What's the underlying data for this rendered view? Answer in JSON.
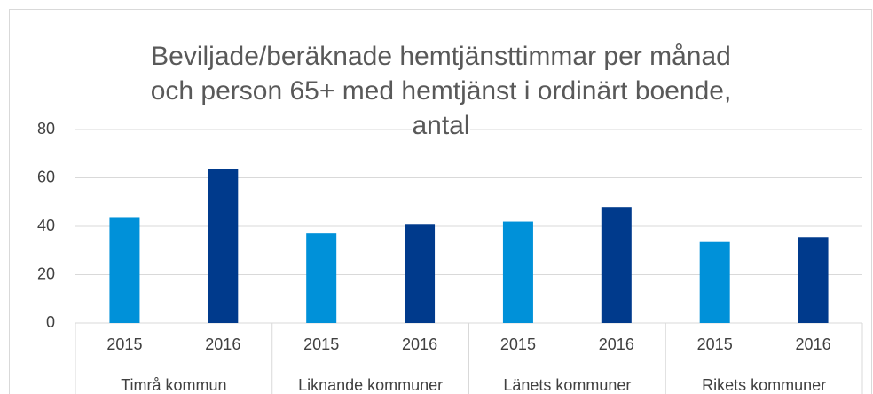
{
  "chart_data": {
    "type": "bar",
    "title": "Beviljade/beräknade hemtjänsttimmar per månad och person 65+ med hemtjänst i ordinärt boende, antal",
    "categories": [
      "2015",
      "2016",
      "2015",
      "2016",
      "2015",
      "2016",
      "2015",
      "2016"
    ],
    "groups": [
      "Timrå kommun",
      "Liknande kommuner",
      "Länets kommuner",
      "Rikets kommuner"
    ],
    "values": [
      43.5,
      63.5,
      37,
      41,
      42,
      48,
      33.5,
      35.5
    ],
    "colors": [
      "#0091d9",
      "#003a8c",
      "#0091d9",
      "#003a8c",
      "#0091d9",
      "#003a8c",
      "#0091d9",
      "#003a8c"
    ],
    "ylim": [
      0,
      80
    ],
    "yticks": [
      0,
      20,
      40,
      60,
      80
    ],
    "grid": true
  }
}
